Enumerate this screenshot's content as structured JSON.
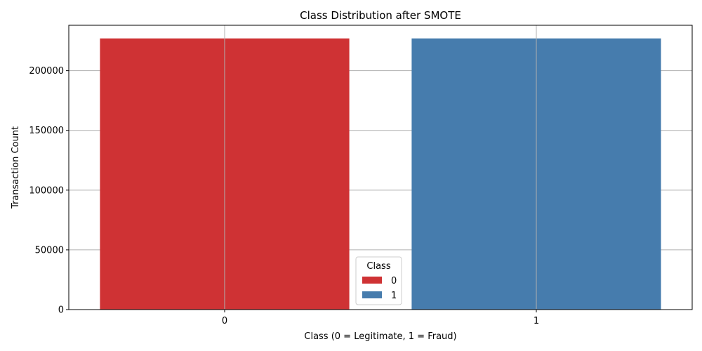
{
  "chart_data": {
    "type": "bar",
    "title": "Class Distribution after SMOTE",
    "xlabel": "Class (0 = Legitimate, 1 = Fraud)",
    "ylabel": "Transaction Count",
    "categories": [
      "0",
      "1"
    ],
    "values": [
      227000,
      227000
    ],
    "colors": [
      "#cf3234",
      "#467cad"
    ],
    "ylim": [
      0,
      238000
    ],
    "yticks": [
      0,
      50000,
      100000,
      150000,
      200000
    ],
    "ytick_labels": [
      "0",
      "50000",
      "100000",
      "150000",
      "200000"
    ],
    "grid": true,
    "legend": {
      "title": "Class",
      "placement": "bottom-center",
      "entries": [
        {
          "label": "0",
          "color": "#cf3234"
        },
        {
          "label": "1",
          "color": "#467cad"
        }
      ]
    }
  }
}
